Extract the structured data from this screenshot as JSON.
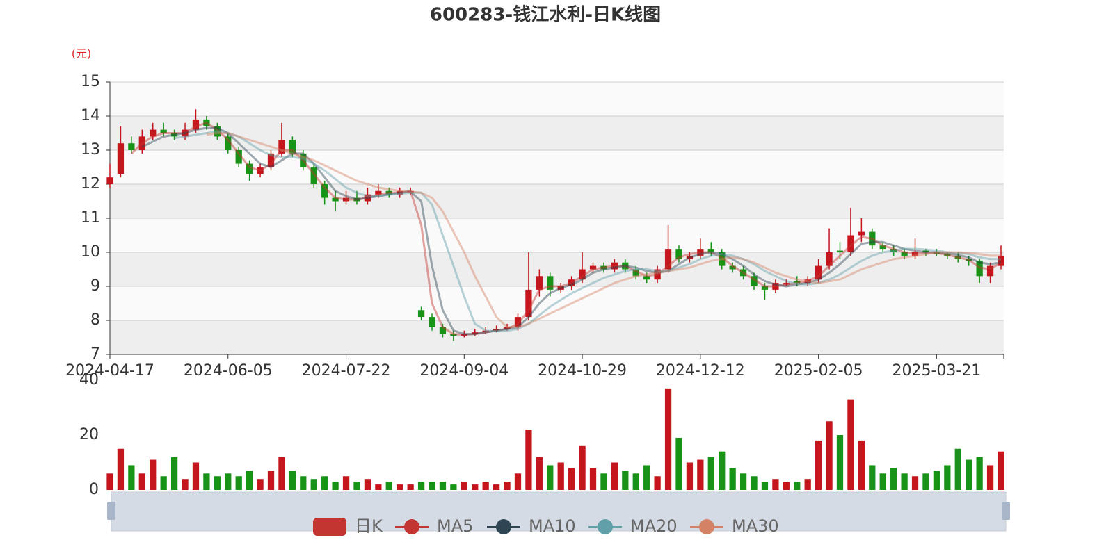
{
  "chart_data": {
    "type": "candlestick",
    "title": "600283-钱江水利-日K线图",
    "y_unit": "(元)",
    "grid": true,
    "up_color": "#c4161c",
    "down_color": "#179317",
    "categories": [
      "2024-04-17",
      null,
      null,
      null,
      null,
      null,
      null,
      null,
      null,
      null,
      null,
      "2024-06-05",
      null,
      null,
      null,
      null,
      null,
      null,
      null,
      null,
      null,
      null,
      "2024-07-22",
      null,
      null,
      null,
      null,
      null,
      null,
      null,
      null,
      null,
      null,
      "2024-09-04",
      null,
      null,
      null,
      null,
      null,
      null,
      null,
      null,
      null,
      null,
      "2024-10-29",
      null,
      null,
      null,
      null,
      null,
      null,
      null,
      null,
      null,
      null,
      "2024-12-12",
      null,
      null,
      null,
      null,
      null,
      null,
      null,
      null,
      null,
      null,
      "2025-02-05",
      null,
      null,
      null,
      null,
      null,
      null,
      null,
      null,
      null,
      null,
      "2025-03-21",
      null,
      null,
      null,
      null,
      null,
      null
    ],
    "ylim": [
      7,
      15
    ],
    "yticks": [
      7,
      8,
      9,
      10,
      11,
      12,
      13,
      14,
      15
    ],
    "candles": {
      "name": "日K",
      "color": "#c23531",
      "open": [
        12.0,
        12.3,
        13.2,
        13.0,
        13.4,
        13.6,
        13.5,
        13.4,
        13.6,
        13.9,
        13.7,
        13.4,
        13.0,
        12.6,
        12.3,
        12.5,
        12.9,
        13.3,
        12.9,
        12.5,
        12.0,
        11.6,
        11.5,
        11.6,
        11.5,
        11.7,
        11.8,
        11.7,
        11.75,
        8.3,
        8.1,
        7.8,
        7.6,
        7.55,
        7.6,
        7.65,
        7.7,
        7.75,
        7.8,
        8.1,
        8.9,
        9.3,
        8.9,
        9.0,
        9.2,
        9.5,
        9.6,
        9.5,
        9.7,
        9.5,
        9.3,
        9.2,
        9.5,
        10.1,
        9.8,
        9.9,
        10.1,
        10.0,
        9.6,
        9.5,
        9.3,
        9.0,
        8.9,
        9.05,
        9.15,
        9.1,
        9.2,
        9.6,
        10.05,
        10.0,
        10.5,
        10.6,
        10.2,
        10.1,
        10.0,
        9.9,
        10.05,
        10.0,
        9.95,
        9.9,
        9.8,
        9.75,
        9.3,
        9.6
      ],
      "close": [
        12.2,
        13.2,
        13.0,
        13.4,
        13.6,
        13.5,
        13.4,
        13.6,
        13.9,
        13.7,
        13.4,
        13.0,
        12.6,
        12.3,
        12.5,
        12.9,
        13.3,
        12.9,
        12.5,
        12.0,
        11.6,
        11.5,
        11.6,
        11.5,
        11.7,
        11.8,
        11.7,
        11.8,
        11.8,
        8.1,
        7.8,
        7.6,
        7.55,
        7.6,
        7.65,
        7.7,
        7.75,
        7.8,
        8.1,
        8.9,
        9.3,
        8.9,
        9.0,
        9.2,
        9.5,
        9.6,
        9.5,
        9.7,
        9.5,
        9.3,
        9.2,
        9.5,
        10.1,
        9.8,
        9.9,
        10.1,
        10.0,
        9.6,
        9.5,
        9.3,
        9.0,
        8.9,
        9.1,
        9.1,
        9.1,
        9.2,
        9.6,
        10.0,
        10.0,
        10.5,
        10.6,
        10.2,
        10.1,
        10.0,
        9.9,
        10.0,
        10.0,
        9.95,
        9.9,
        9.8,
        9.75,
        9.3,
        9.6,
        9.9
      ],
      "low": [
        11.9,
        12.2,
        12.9,
        12.9,
        13.3,
        13.4,
        13.3,
        13.3,
        13.5,
        13.6,
        13.3,
        12.9,
        12.5,
        12.1,
        12.2,
        12.4,
        12.8,
        12.8,
        12.4,
        11.9,
        11.4,
        11.2,
        11.4,
        11.4,
        11.4,
        11.6,
        11.6,
        11.6,
        11.7,
        8.0,
        7.7,
        7.5,
        7.4,
        7.5,
        7.55,
        7.6,
        7.65,
        7.7,
        7.7,
        8.0,
        8.7,
        8.7,
        8.8,
        8.9,
        9.1,
        9.4,
        9.4,
        9.4,
        9.4,
        9.2,
        9.1,
        9.1,
        9.4,
        9.7,
        9.7,
        9.8,
        9.9,
        9.5,
        9.4,
        9.2,
        8.9,
        8.6,
        8.8,
        9.0,
        9.0,
        9.0,
        9.1,
        9.5,
        9.8,
        9.9,
        10.3,
        10.1,
        10.0,
        9.9,
        9.8,
        9.8,
        9.9,
        9.9,
        9.8,
        9.7,
        9.6,
        9.1,
        9.1,
        9.5
      ],
      "high": [
        12.6,
        13.7,
        13.4,
        13.6,
        13.8,
        13.8,
        13.6,
        13.8,
        14.2,
        14.0,
        13.8,
        13.5,
        13.1,
        12.7,
        12.6,
        13.0,
        13.8,
        13.4,
        13.0,
        12.6,
        12.1,
        11.8,
        11.8,
        11.8,
        11.9,
        12.0,
        11.9,
        11.9,
        11.9,
        8.4,
        8.2,
        7.9,
        7.7,
        7.7,
        7.75,
        7.8,
        7.85,
        7.9,
        8.2,
        10.0,
        9.5,
        9.4,
        9.1,
        9.3,
        10.0,
        9.7,
        9.7,
        9.8,
        9.8,
        9.6,
        9.4,
        9.6,
        10.8,
        10.2,
        10.0,
        10.4,
        10.3,
        10.1,
        9.7,
        9.6,
        9.4,
        9.1,
        9.2,
        9.2,
        9.3,
        9.3,
        9.8,
        10.7,
        10.3,
        11.3,
        11.0,
        10.7,
        10.3,
        10.2,
        10.1,
        10.4,
        10.1,
        10.1,
        10.0,
        10.0,
        9.9,
        9.8,
        9.7,
        10.2
      ]
    },
    "series": [
      {
        "name": "MA5",
        "color": "#c23531",
        "values": [
          null,
          null,
          12.9,
          13.2,
          13.4,
          13.5,
          13.5,
          13.5,
          13.7,
          13.8,
          13.6,
          13.3,
          12.9,
          12.5,
          12.4,
          12.6,
          13.0,
          13.0,
          12.7,
          12.3,
          11.9,
          11.6,
          11.55,
          11.55,
          11.6,
          11.7,
          11.75,
          11.75,
          11.8,
          10.8,
          8.5,
          7.8,
          7.6,
          7.58,
          7.6,
          7.65,
          7.7,
          7.75,
          7.9,
          8.3,
          8.9,
          9.0,
          9.0,
          9.1,
          9.3,
          9.5,
          9.55,
          9.6,
          9.6,
          9.45,
          9.3,
          9.35,
          9.6,
          9.85,
          9.95,
          10.0,
          10.0,
          9.85,
          9.6,
          9.4,
          9.2,
          9.0,
          9.0,
          9.05,
          9.1,
          9.15,
          9.3,
          9.6,
          9.9,
          10.2,
          10.45,
          10.4,
          10.2,
          10.1,
          10.0,
          9.98,
          9.98,
          9.98,
          9.93,
          9.85,
          9.78,
          9.55,
          9.5,
          9.7
        ]
      },
      {
        "name": "MA10",
        "color": "#2f4554",
        "values": [
          null,
          null,
          null,
          13.1,
          13.25,
          13.4,
          13.45,
          13.5,
          13.6,
          13.65,
          13.65,
          13.5,
          13.2,
          12.9,
          12.6,
          12.5,
          12.7,
          12.9,
          12.9,
          12.6,
          12.2,
          11.8,
          11.65,
          11.55,
          11.6,
          11.65,
          11.7,
          11.75,
          11.78,
          11.5,
          9.6,
          8.3,
          7.7,
          7.6,
          7.6,
          7.65,
          7.7,
          7.75,
          7.8,
          8.1,
          8.5,
          8.8,
          8.95,
          9.05,
          9.2,
          9.4,
          9.5,
          9.55,
          9.6,
          9.55,
          9.45,
          9.4,
          9.45,
          9.65,
          9.85,
          9.95,
          10.0,
          9.95,
          9.8,
          9.6,
          9.35,
          9.15,
          9.05,
          9.0,
          9.05,
          9.1,
          9.2,
          9.4,
          9.65,
          9.95,
          10.25,
          10.3,
          10.3,
          10.2,
          10.1,
          10.05,
          10.0,
          10.0,
          9.98,
          9.92,
          9.85,
          9.7,
          9.65,
          9.7
        ]
      },
      {
        "name": "MA20",
        "color": "#61a0a8",
        "values": [
          null,
          null,
          null,
          null,
          null,
          null,
          13.35,
          13.4,
          13.45,
          13.5,
          13.55,
          13.5,
          13.4,
          13.2,
          13.0,
          12.85,
          12.8,
          12.8,
          12.75,
          12.6,
          12.4,
          12.15,
          11.9,
          11.75,
          11.65,
          11.65,
          11.7,
          11.72,
          11.75,
          11.75,
          11.4,
          10.5,
          9.6,
          8.7,
          7.9,
          7.7,
          7.68,
          7.7,
          7.75,
          7.9,
          8.15,
          8.4,
          8.6,
          8.8,
          8.95,
          9.1,
          9.25,
          9.35,
          9.45,
          9.5,
          9.5,
          9.45,
          9.45,
          9.55,
          9.65,
          9.8,
          9.9,
          9.95,
          9.9,
          9.8,
          9.65,
          9.45,
          9.3,
          9.15,
          9.08,
          9.05,
          9.1,
          9.2,
          9.35,
          9.55,
          9.75,
          9.9,
          10.0,
          10.05,
          10.1,
          10.1,
          10.08,
          10.05,
          10.0,
          9.98,
          9.95,
          9.85,
          9.8,
          9.8
        ]
      },
      {
        "name": "MA30",
        "color": "#d48265",
        "values": [
          null,
          null,
          null,
          null,
          null,
          null,
          null,
          null,
          null,
          13.45,
          13.5,
          13.5,
          13.4,
          13.3,
          13.2,
          13.1,
          13.0,
          12.9,
          12.8,
          12.7,
          12.55,
          12.4,
          12.25,
          12.1,
          12.0,
          11.9,
          11.85,
          11.8,
          11.78,
          11.75,
          11.6,
          11.2,
          10.6,
          10.0,
          9.3,
          8.7,
          8.1,
          7.8,
          7.8,
          7.9,
          8.05,
          8.2,
          8.35,
          8.5,
          8.65,
          8.8,
          8.95,
          9.1,
          9.2,
          9.3,
          9.35,
          9.4,
          9.45,
          9.5,
          9.55,
          9.65,
          9.75,
          9.8,
          9.85,
          9.8,
          9.7,
          9.55,
          9.4,
          9.3,
          9.2,
          9.15,
          9.1,
          9.15,
          9.2,
          9.35,
          9.5,
          9.6,
          9.7,
          9.8,
          9.85,
          9.9,
          9.95,
          10.0,
          10.0,
          10.0,
          9.98,
          9.95,
          9.9,
          9.9
        ]
      }
    ],
    "volume": {
      "ylim": [
        0,
        40
      ],
      "yticks": [
        0,
        20,
        40
      ],
      "values": [
        6,
        15,
        9,
        6,
        11,
        5,
        12,
        4,
        10,
        6,
        5,
        6,
        5,
        7,
        4,
        7,
        12,
        7,
        5,
        4,
        5,
        3,
        5,
        3,
        4,
        2,
        3,
        2,
        2,
        3,
        3,
        3,
        2,
        3,
        2,
        3,
        2,
        3,
        6,
        22,
        12,
        9,
        10,
        8,
        16,
        8,
        6,
        10,
        7,
        6,
        9,
        5,
        37,
        19,
        10,
        11,
        12,
        14,
        8,
        6,
        5,
        3,
        4,
        3,
        3,
        4,
        18,
        25,
        20,
        33,
        18,
        9,
        6,
        8,
        6,
        5,
        6,
        7,
        9,
        15,
        11,
        12,
        9,
        14
      ]
    }
  }
}
